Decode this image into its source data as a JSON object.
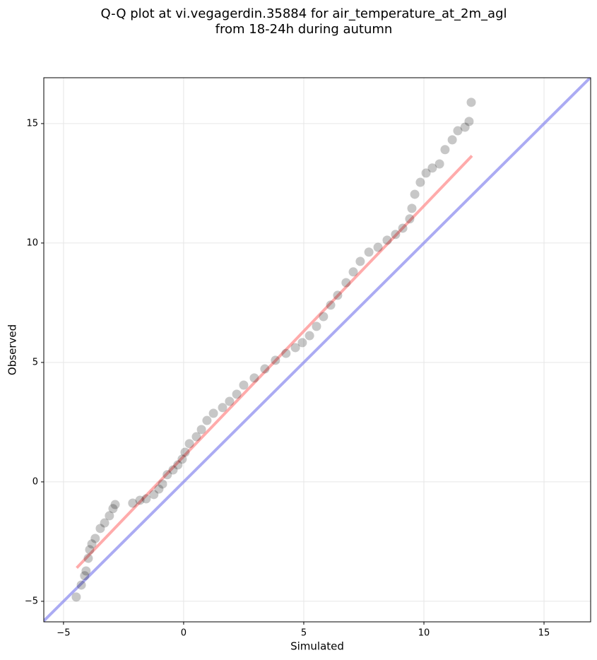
{
  "chart_data": {
    "type": "scatter",
    "title": [
      "Q-Q plot at vi.vegagerdin.35884 for air_temperature_at_2m_agl",
      "from 18-24h during autumn"
    ],
    "xlabel": "Simulated",
    "ylabel": "Observed",
    "xlim": [
      -5.82,
      16.94
    ],
    "ylim": [
      -5.86,
      16.92
    ],
    "xticks": [
      {
        "value": -5,
        "label": "−5"
      },
      0,
      5,
      10,
      15
    ],
    "yticks": [
      {
        "value": -5,
        "label": "−5"
      },
      0,
      5,
      10,
      15
    ],
    "grid": true,
    "series": [
      {
        "type": "scatter",
        "color": "#000000",
        "x": [
          -4.47,
          -4.26,
          -4.12,
          -4.06,
          -3.97,
          -3.91,
          -3.82,
          -3.68,
          -3.47,
          -3.29,
          -3.09,
          -2.94,
          -2.85,
          -2.12,
          -1.82,
          -1.56,
          -1.24,
          -1.03,
          -0.88,
          -0.68,
          -0.44,
          -0.24,
          -0.06,
          0.06,
          0.24,
          0.53,
          0.74,
          0.97,
          1.24,
          1.62,
          1.91,
          2.21,
          2.5,
          2.94,
          3.38,
          3.82,
          4.26,
          4.65,
          4.94,
          5.24,
          5.53,
          5.82,
          6.12,
          6.41,
          6.76,
          7.06,
          7.35,
          7.71,
          8.09,
          8.47,
          8.82,
          9.12,
          9.41,
          9.5,
          9.62,
          9.85,
          10.09,
          10.35,
          10.65,
          10.88,
          11.18,
          11.41,
          11.71,
          11.88,
          11.97
        ],
        "y": [
          -4.82,
          -4.32,
          -3.93,
          -3.73,
          -3.2,
          -2.84,
          -2.6,
          -2.37,
          -1.95,
          -1.72,
          -1.42,
          -1.12,
          -0.95,
          -0.89,
          -0.77,
          -0.71,
          -0.53,
          -0.3,
          -0.09,
          0.3,
          0.5,
          0.71,
          0.95,
          1.24,
          1.6,
          1.89,
          2.19,
          2.57,
          2.87,
          3.11,
          3.37,
          3.67,
          4.05,
          4.35,
          4.73,
          5.09,
          5.38,
          5.62,
          5.83,
          6.12,
          6.51,
          6.92,
          7.4,
          7.81,
          8.34,
          8.79,
          9.23,
          9.62,
          9.82,
          10.12,
          10.36,
          10.62,
          11.01,
          11.45,
          12.04,
          12.54,
          12.93,
          13.14,
          13.31,
          13.91,
          14.32,
          14.7,
          14.85,
          15.09,
          15.89
        ]
      },
      {
        "type": "line",
        "color": "#ff8888",
        "x": [
          -4.45,
          12
        ],
        "y": [
          -3.6,
          13.65
        ]
      },
      {
        "type": "line",
        "color": "#8888ee",
        "x": [
          -5.82,
          16.94
        ],
        "y": [
          -5.82,
          16.94
        ]
      }
    ]
  }
}
